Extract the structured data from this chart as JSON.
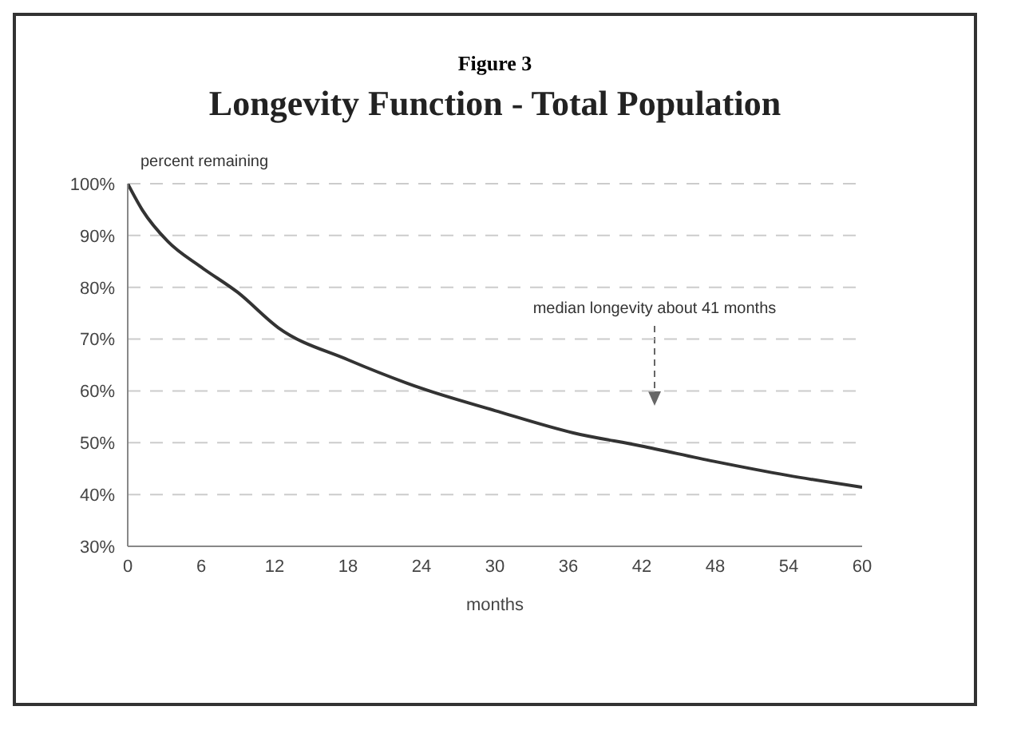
{
  "chart_data": {
    "type": "line",
    "title": "Figure 3",
    "subtitle": "Longevity Function - Total Population",
    "ylabel": "percent remaining",
    "xlabel": "months",
    "x": [
      0,
      1.2,
      3.3,
      6,
      9,
      12.3,
      18,
      24,
      30,
      36.4,
      41.9,
      47.9,
      53.9,
      60
    ],
    "series": [
      {
        "color": "#333333",
        "values": [
          100,
          94.9,
          88.8,
          83.9,
          79,
          72.2,
          66,
          60.5,
          56.2,
          51.9,
          49.4,
          46.4,
          43.7,
          41.4
        ]
      }
    ],
    "xlim": [
      0,
      60
    ],
    "xticks": [
      0,
      6,
      12,
      18,
      24,
      30,
      36,
      42,
      48,
      54,
      60
    ],
    "ylim": [
      30,
      100
    ],
    "yticks": [
      {
        "value": 30,
        "label": "30%"
      },
      {
        "value": 40,
        "label": "40%"
      },
      {
        "value": 50,
        "label": "50%"
      },
      {
        "value": 60,
        "label": "60%"
      },
      {
        "value": 70,
        "label": "70%"
      },
      {
        "value": 80,
        "label": "80%"
      },
      {
        "value": 90,
        "label": "90%"
      },
      {
        "value": 100,
        "label": "100%"
      }
    ],
    "grid": "y",
    "marker": "none",
    "line_style": "solid",
    "annotations": [
      "median longevity about 41 months"
    ]
  }
}
